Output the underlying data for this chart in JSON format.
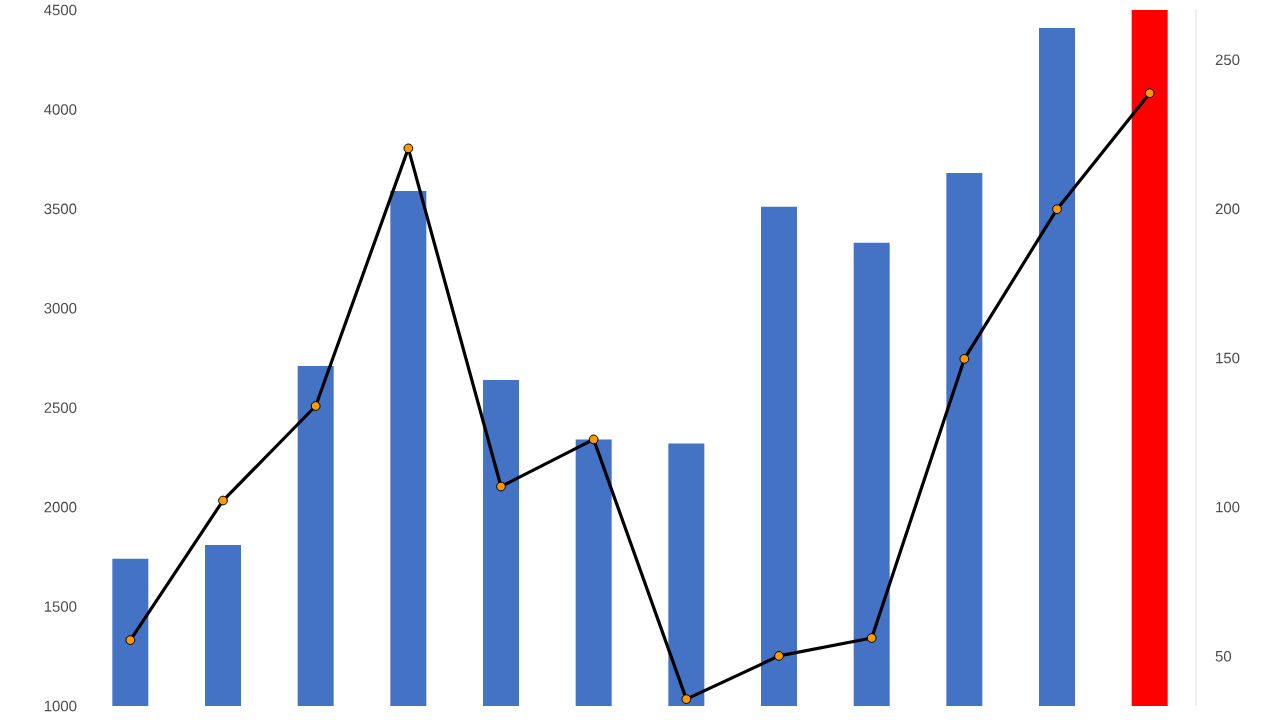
{
  "chart_data": [
    {
      "type": "bar",
      "categories": [
        null,
        null,
        null,
        null,
        null,
        null,
        null,
        null,
        null,
        null,
        null,
        null
      ],
      "colors": [
        "#4472c4",
        "#4472c4",
        "#4472c4",
        "#4472c4",
        "#4472c4",
        "#4472c4",
        "#4472c4",
        "#4472c4",
        "#4472c4",
        "#4472c4",
        "#4472c4",
        "#ff0000"
      ],
      "values": [
        1740,
        1810,
        2710,
        3590,
        2640,
        2340,
        2320,
        3510,
        3330,
        3680,
        4410,
        4500
      ],
      "ylim": [
        1000,
        4500
      ],
      "yticks": [
        1000,
        1500,
        2000,
        2500,
        3000,
        3500,
        4000,
        4500
      ]
    },
    {
      "type": "line",
      "categories": [
        null,
        null,
        null,
        null,
        null,
        null,
        null,
        null,
        null,
        null,
        null,
        null
      ],
      "color": "#000000",
      "marker": "circle",
      "values": [
        55.4,
        102.2,
        133.9,
        220.3,
        106.9,
        122.7,
        35.6,
        50.1,
        56.1,
        149.7,
        199.9,
        238.8
      ],
      "ylim": [
        33.3,
        266.7
      ],
      "yticks": [
        50,
        100,
        150,
        200,
        250
      ]
    }
  ]
}
